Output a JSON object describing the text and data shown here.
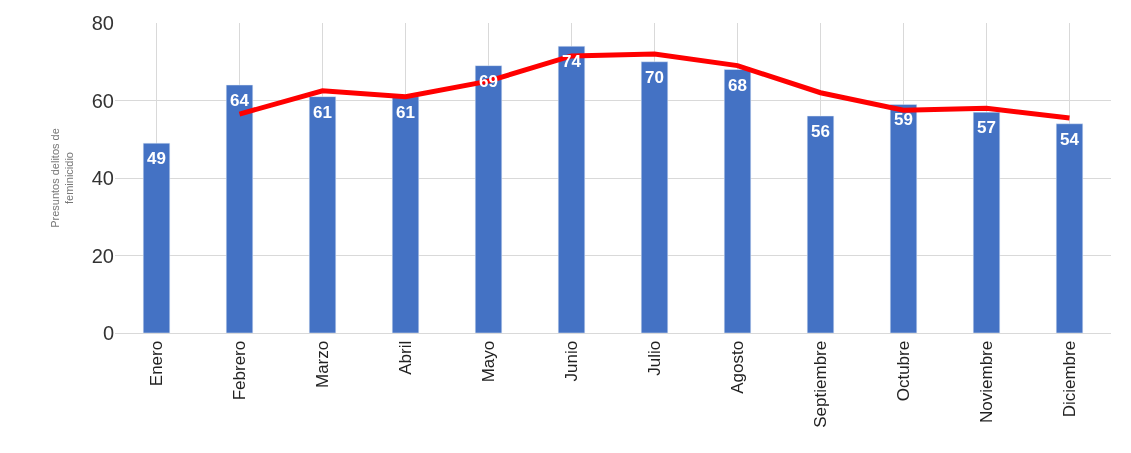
{
  "chart_data": {
    "type": "bar",
    "ylabel": "Presuntos delitos de feminicidio",
    "categories": [
      "Enero",
      "Febrero",
      "Marzo",
      "Abril",
      "Mayo",
      "Junio",
      "Julio",
      "Agosto",
      "Septiembre",
      "Octubre",
      "Noviembre",
      "Diciembre"
    ],
    "series": [
      {
        "color": "#4472c4",
        "values": [
          49,
          64,
          61,
          61,
          69,
          74,
          70,
          68,
          56,
          59,
          57,
          54
        ],
        "value_labels": [
          "49",
          "64",
          "61",
          "61",
          "69",
          "74",
          "70",
          "68",
          "56",
          "59",
          "57",
          "54"
        ]
      },
      {
        "type": "line",
        "color": "#ff0000",
        "values": [
          null,
          56.5,
          62.5,
          61,
          65,
          71.5,
          72,
          69,
          62,
          57.5,
          58,
          55.5
        ]
      }
    ],
    "ylim": [
      0,
      80
    ],
    "yticks": [
      0,
      20,
      40,
      60,
      80
    ],
    "grid": true,
    "marker": "none",
    "line_style": "solid"
  }
}
